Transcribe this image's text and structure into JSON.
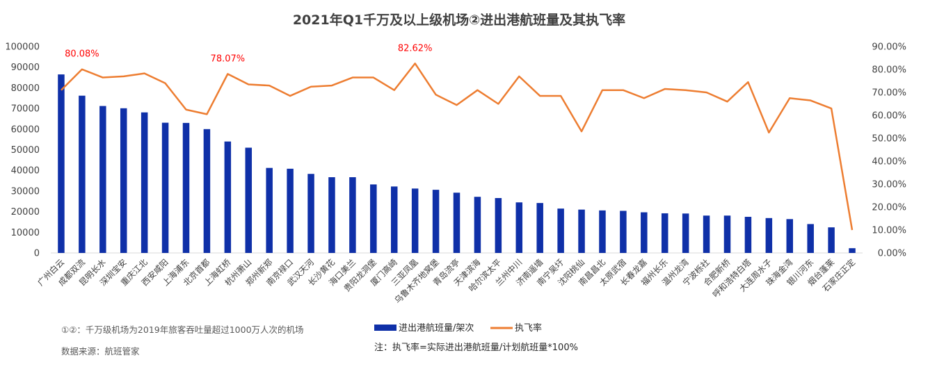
{
  "chart_data": {
    "type": "bar",
    "title": "2021年Q1千万及以上级机场②进出港航班量及其执飞率",
    "categories": [
      "广州白云",
      "成都双流",
      "昆明长水",
      "深圳宝安",
      "重庆江北",
      "西安咸阳",
      "上海浦东",
      "北京首都",
      "上海虹桥",
      "杭州萧山",
      "郑州新郑",
      "南京禄口",
      "武汉天河",
      "长沙黄花",
      "海口美兰",
      "贵阳龙洞堡",
      "厦门高崎",
      "三亚凤凰",
      "乌鲁木齐地窝堡",
      "青岛流亭",
      "天津滨海",
      "哈尔滨太平",
      "兰州中川",
      "济南遥墙",
      "南宁吴圩",
      "沈阳桃仙",
      "南昌昌北",
      "太原武宿",
      "长春龙嘉",
      "福州长乐",
      "温州龙湾",
      "宁波栎社",
      "合肥新桥",
      "呼和浩特白塔",
      "大连周水子",
      "珠海金湾",
      "银川河东",
      "烟台蓬莱",
      "石家庄正定"
    ],
    "series": [
      {
        "name": "进出港航班量/架次",
        "axis": "left",
        "color": "#0f30a8",
        "values": [
          86500,
          76200,
          71200,
          70100,
          68100,
          63100,
          63000,
          60000,
          54000,
          51000,
          41200,
          40800,
          38300,
          36700,
          36700,
          33200,
          32200,
          31200,
          30600,
          29200,
          27200,
          26600,
          24500,
          24200,
          21500,
          21000,
          20600,
          20400,
          19700,
          19200,
          19100,
          18100,
          18100,
          17500,
          16900,
          16400,
          14000,
          12400,
          2300
        ]
      },
      {
        "name": "执飞率",
        "axis": "right",
        "type": "line",
        "color": "#ed7d31",
        "values": [
          0.71,
          0.8008,
          0.765,
          0.77,
          0.783,
          0.74,
          0.625,
          0.605,
          0.7807,
          0.735,
          0.73,
          0.685,
          0.725,
          0.73,
          0.765,
          0.765,
          0.71,
          0.8262,
          0.69,
          0.645,
          0.71,
          0.65,
          0.77,
          0.685,
          0.685,
          0.53,
          0.71,
          0.71,
          0.675,
          0.715,
          0.71,
          0.7,
          0.66,
          0.745,
          0.525,
          0.675,
          0.665,
          0.63,
          0.1
        ]
      }
    ],
    "left_axis": {
      "min": 0,
      "max": 100000,
      "step": 10000,
      "ticks": [
        "0",
        "10000",
        "20000",
        "30000",
        "40000",
        "50000",
        "60000",
        "70000",
        "80000",
        "90000",
        "100000"
      ]
    },
    "right_axis": {
      "min": 0,
      "max": 0.9,
      "step": 0.1,
      "ticks": [
        "0.00%",
        "10.00%",
        "20.00%",
        "30.00%",
        "40.00%",
        "50.00%",
        "60.00%",
        "70.00%",
        "80.00%",
        "90.00%"
      ]
    },
    "annotations": [
      {
        "index": 1,
        "text": "80.08%"
      },
      {
        "index": 8,
        "text": "78.07%"
      },
      {
        "index": 17,
        "text": "82.62%"
      }
    ],
    "annotation_color": "#ff0000",
    "legend_position": "bottom",
    "grid": false
  },
  "footnotes": {
    "definition": "①②：千万级机场为2019年旅客吞吐量超过1000万人次的机场",
    "source": "数据来源：航班管家",
    "formula": "注：执飞率=实际进出港航班量/计划航班量*100%"
  }
}
